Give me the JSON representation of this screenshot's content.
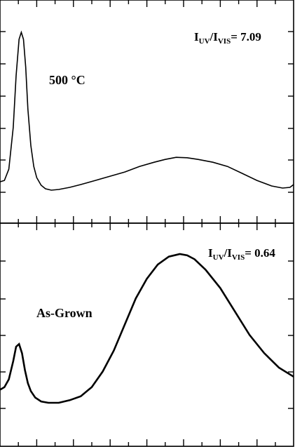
{
  "chart_data": [
    {
      "type": "line",
      "panel": "top",
      "annotations": {
        "condition": "500 °C",
        "ratio_prefix": "I",
        "ratio_sub1": "UV",
        "ratio_sep": "/I",
        "ratio_sub2": "VIS",
        "ratio_value": "= 7.09"
      },
      "xlim": [
        0,
        400
      ],
      "ylim": [
        0,
        1.2
      ],
      "grid": false,
      "series": [
        {
          "x": [
            0,
            6,
            12,
            18,
            22,
            26,
            29,
            32,
            35,
            38,
            42,
            46,
            50,
            56,
            62,
            70,
            80,
            95,
            110,
            130,
            150,
            170,
            190,
            210,
            225,
            240,
            255,
            270,
            290,
            310,
            330,
            350,
            370,
            385,
            395,
            400
          ],
          "y": [
            0.06,
            0.07,
            0.15,
            0.45,
            0.82,
            1.08,
            1.13,
            1.08,
            0.88,
            0.58,
            0.32,
            0.17,
            0.09,
            0.035,
            0.01,
            0.0,
            0.005,
            0.02,
            0.04,
            0.07,
            0.1,
            0.13,
            0.17,
            0.2,
            0.22,
            0.235,
            0.232,
            0.22,
            0.2,
            0.17,
            0.12,
            0.07,
            0.03,
            0.015,
            0.02,
            0.04
          ]
        }
      ]
    },
    {
      "type": "line",
      "panel": "bottom",
      "annotations": {
        "condition": "As-Grown",
        "ratio_prefix": "I",
        "ratio_sub1": "UV",
        "ratio_sep": "/I",
        "ratio_sub2": "VIS",
        "ratio_value": "= 0.64"
      },
      "xlim": [
        0,
        400
      ],
      "ylim": [
        0,
        1.1
      ],
      "grid": false,
      "series": [
        {
          "x": [
            0,
            6,
            12,
            18,
            22,
            26,
            30,
            34,
            38,
            42,
            48,
            56,
            66,
            80,
            95,
            110,
            125,
            140,
            155,
            170,
            185,
            200,
            215,
            230,
            245,
            255,
            265,
            280,
            300,
            320,
            340,
            360,
            380,
            400
          ],
          "y": [
            0.1,
            0.12,
            0.18,
            0.32,
            0.43,
            0.45,
            0.38,
            0.25,
            0.15,
            0.09,
            0.04,
            0.01,
            0.0,
            0.0,
            0.02,
            0.05,
            0.12,
            0.24,
            0.4,
            0.6,
            0.8,
            0.95,
            1.06,
            1.12,
            1.14,
            1.13,
            1.1,
            1.02,
            0.88,
            0.7,
            0.52,
            0.38,
            0.27,
            0.2
          ]
        }
      ]
    }
  ]
}
